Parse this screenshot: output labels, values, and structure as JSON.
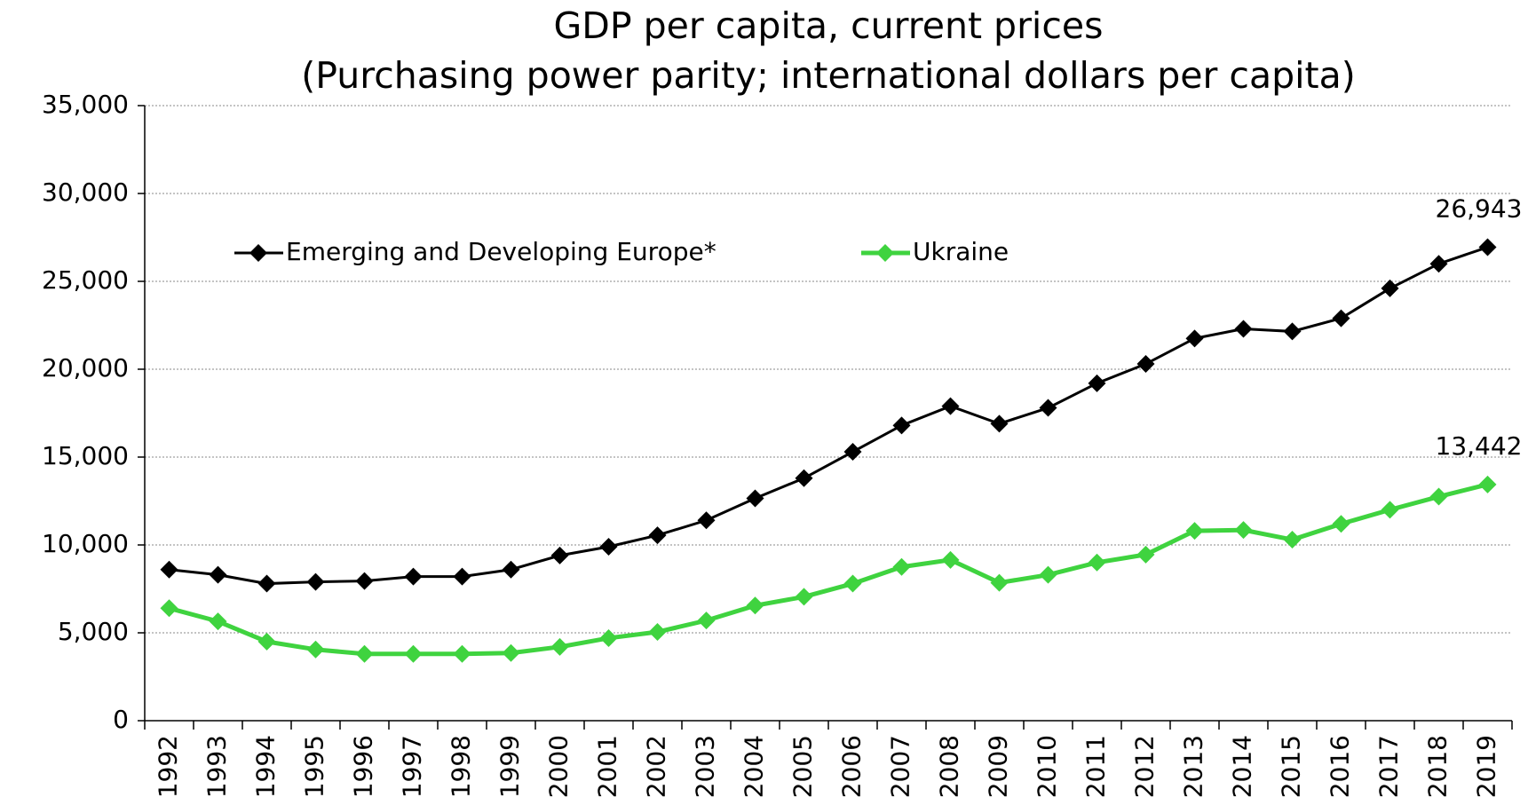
{
  "chart_data": {
    "type": "line",
    "title": "GDP per capita, current prices",
    "subtitle": "(Purchasing power parity; international dollars per capita)",
    "categories": [
      "1992",
      "1993",
      "1994",
      "1995",
      "1996",
      "1997",
      "1998",
      "1999",
      "2000",
      "2001",
      "2002",
      "2003",
      "2004",
      "2005",
      "2006",
      "2007",
      "2008",
      "2009",
      "2010",
      "2011",
      "2012",
      "2013",
      "2014",
      "2015",
      "2016",
      "2017",
      "2018",
      "2019"
    ],
    "series": [
      {
        "name": "Emerging and Developing Europe*",
        "color": "#000000",
        "values": [
          8600,
          8300,
          7800,
          7900,
          7950,
          8200,
          8200,
          8600,
          9400,
          9900,
          10550,
          11400,
          12650,
          13800,
          15300,
          16800,
          17900,
          16900,
          17800,
          19200,
          20300,
          21750,
          22300,
          22150,
          22900,
          24600,
          26000,
          26943
        ],
        "value_labels": [
          null,
          null,
          null,
          null,
          null,
          null,
          null,
          null,
          null,
          null,
          null,
          null,
          null,
          null,
          null,
          null,
          null,
          null,
          null,
          null,
          null,
          null,
          null,
          null,
          null,
          null,
          null,
          "26,943"
        ]
      },
      {
        "name": "Ukraine",
        "color": "#3fd33f",
        "values": [
          6400,
          5650,
          4500,
          4050,
          3800,
          3800,
          3800,
          3850,
          4200,
          4700,
          5050,
          5700,
          6550,
          7050,
          7800,
          8750,
          9150,
          7850,
          8300,
          9000,
          9450,
          10800,
          10850,
          10300,
          11200,
          12000,
          12750,
          13442
        ],
        "value_labels": [
          null,
          null,
          null,
          null,
          null,
          null,
          null,
          null,
          null,
          null,
          null,
          null,
          null,
          null,
          null,
          null,
          null,
          null,
          null,
          null,
          null,
          null,
          null,
          null,
          null,
          null,
          null,
          "13,442"
        ]
      }
    ],
    "ylim": [
      0,
      35000
    ],
    "yticks": [
      0,
      {
        "value": 5000,
        "label": "5,000"
      },
      {
        "value": 10000,
        "label": "10,000"
      },
      {
        "value": 15000,
        "label": "15,000"
      },
      {
        "value": 20000,
        "label": "20,000"
      },
      {
        "value": 25000,
        "label": "25,000"
      },
      {
        "value": 30000,
        "label": "30,000"
      },
      {
        "value": 35000,
        "label": "35,000"
      }
    ],
    "grid": true,
    "legend": "top-left"
  }
}
